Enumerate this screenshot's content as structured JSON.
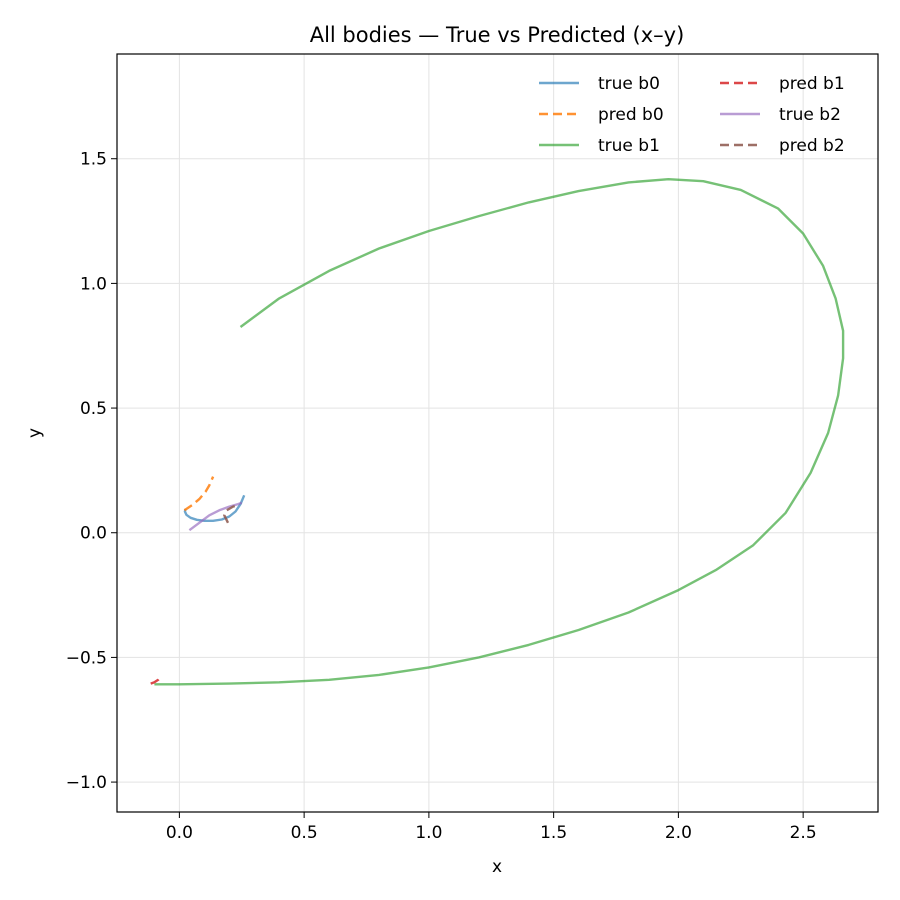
{
  "chart_data": {
    "type": "line",
    "title": "All bodies — True vs Predicted (x–y)",
    "xlabel": "x",
    "ylabel": "y",
    "xlim": [
      -0.25,
      2.8
    ],
    "ylim": [
      -1.12,
      1.92
    ],
    "xticks": [
      0.0,
      0.5,
      1.0,
      1.5,
      2.0,
      2.5
    ],
    "xtick_labels": [
      "0.0",
      "0.5",
      "1.0",
      "1.5",
      "2.0",
      "2.5"
    ],
    "yticks": [
      -1.0,
      -0.5,
      0.0,
      0.5,
      1.0,
      1.5
    ],
    "ytick_labels": [
      "−1.0",
      "−0.5",
      "0.0",
      "0.5",
      "1.0",
      "1.5"
    ],
    "grid": true,
    "legend": {
      "placement": "top-right",
      "columns": 2
    },
    "series": [
      {
        "name": "true b0",
        "color": "#1f77b4",
        "dash": "solid",
        "opacity": 0.65,
        "points": [
          [
            0.26,
            0.15
          ],
          [
            0.245,
            0.115
          ],
          [
            0.225,
            0.085
          ],
          [
            0.2,
            0.065
          ],
          [
            0.17,
            0.053
          ],
          [
            0.135,
            0.048
          ],
          [
            0.1,
            0.048
          ],
          [
            0.07,
            0.052
          ],
          [
            0.045,
            0.06
          ],
          [
            0.028,
            0.072
          ],
          [
            0.022,
            0.085
          ],
          [
            0.025,
            0.095
          ]
        ]
      },
      {
        "name": "pred b0",
        "color": "#ff7f0e",
        "dash": "dashed",
        "opacity": 0.85,
        "points": [
          [
            0.02,
            0.09
          ],
          [
            0.05,
            0.11
          ],
          [
            0.08,
            0.135
          ],
          [
            0.105,
            0.165
          ],
          [
            0.12,
            0.19
          ],
          [
            0.135,
            0.225
          ]
        ]
      },
      {
        "name": "true b1",
        "color": "#2ca02c",
        "dash": "solid",
        "opacity": 0.65,
        "points": [
          [
            0.245,
            0.825
          ],
          [
            0.4,
            0.94
          ],
          [
            0.6,
            1.05
          ],
          [
            0.8,
            1.14
          ],
          [
            1.0,
            1.21
          ],
          [
            1.2,
            1.27
          ],
          [
            1.4,
            1.325
          ],
          [
            1.6,
            1.37
          ],
          [
            1.8,
            1.405
          ],
          [
            1.96,
            1.418
          ],
          [
            2.1,
            1.41
          ],
          [
            2.25,
            1.375
          ],
          [
            2.4,
            1.3
          ],
          [
            2.5,
            1.2
          ],
          [
            2.58,
            1.07
          ],
          [
            2.63,
            0.94
          ],
          [
            2.66,
            0.81
          ],
          [
            2.66,
            0.7
          ],
          [
            2.64,
            0.55
          ],
          [
            2.6,
            0.4
          ],
          [
            2.53,
            0.24
          ],
          [
            2.43,
            0.08
          ],
          [
            2.3,
            -0.05
          ],
          [
            2.15,
            -0.15
          ],
          [
            2.0,
            -0.23
          ],
          [
            1.8,
            -0.32
          ],
          [
            1.6,
            -0.39
          ],
          [
            1.4,
            -0.45
          ],
          [
            1.2,
            -0.5
          ],
          [
            1.0,
            -0.54
          ],
          [
            0.8,
            -0.57
          ],
          [
            0.6,
            -0.59
          ],
          [
            0.4,
            -0.6
          ],
          [
            0.2,
            -0.605
          ],
          [
            0.0,
            -0.608
          ],
          [
            -0.1,
            -0.608
          ]
        ]
      },
      {
        "name": "pred b1",
        "color": "#d62728",
        "dash": "dashed",
        "opacity": 0.85,
        "points": [
          [
            -0.115,
            -0.605
          ],
          [
            -0.1,
            -0.6
          ],
          [
            -0.085,
            -0.59
          ],
          [
            -0.075,
            -0.578
          ]
        ]
      },
      {
        "name": "true b2",
        "color": "#9467bd",
        "dash": "solid",
        "opacity": 0.65,
        "points": [
          [
            0.04,
            0.01
          ],
          [
            0.08,
            0.04
          ],
          [
            0.12,
            0.07
          ],
          [
            0.16,
            0.09
          ],
          [
            0.2,
            0.105
          ],
          [
            0.235,
            0.115
          ],
          [
            0.25,
            0.12
          ]
        ]
      },
      {
        "name": "pred b2",
        "color": "#8c564b",
        "dash": "dashed",
        "opacity": 0.85,
        "points": [
          [
            0.195,
            0.04
          ],
          [
            0.18,
            0.07
          ],
          [
            0.19,
            0.09
          ],
          [
            0.215,
            0.105
          ],
          [
            0.24,
            0.112
          ]
        ]
      }
    ]
  }
}
